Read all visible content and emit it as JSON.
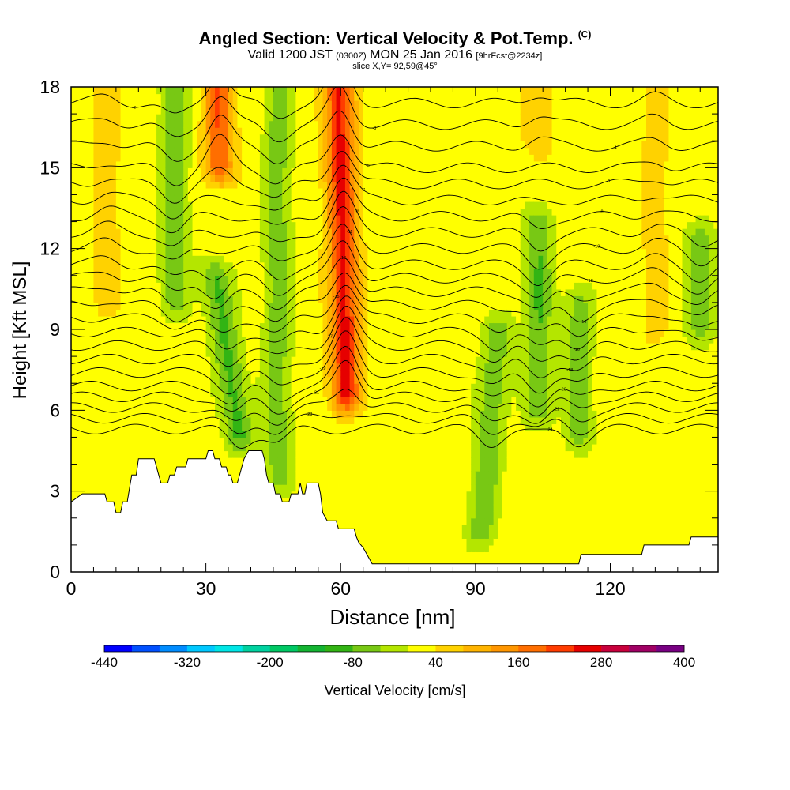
{
  "chart_data": {
    "type": "heatmap",
    "title": "Angled Section: Vertical Velocity & Pot.Temp.",
    "title_badge": "(C)",
    "subtitle_main_a": "Valid 1200 JST",
    "subtitle_small_a": "(0300Z)",
    "subtitle_main_b": "MON 25 Jan 2016",
    "subtitle_small_b": "[9hrFcst@2234z]",
    "slice_label": "slice X,Y= 92,59@45°",
    "xlabel": "Distance [nm]",
    "ylabel": "Height [Kft MSL]",
    "xlim": [
      0,
      144
    ],
    "ylim": [
      0,
      18
    ],
    "x_ticks": [
      "0",
      "30",
      "60",
      "90",
      "120"
    ],
    "y_ticks": [
      "0",
      "3",
      "6",
      "9",
      "12",
      "15",
      "18"
    ],
    "colorbar": {
      "label": "Vertical Velocity [cm/s]",
      "tick_labels": [
        "-440",
        "-320",
        "-200",
        "-80",
        "40",
        "160",
        "280",
        "400"
      ],
      "range": [
        -440,
        400
      ],
      "colors": [
        "#0000ff",
        "#0050ff",
        "#008cff",
        "#00c8ff",
        "#00e6e6",
        "#00d2a0",
        "#00c864",
        "#14b432",
        "#32b414",
        "#78c814",
        "#b4e600",
        "#ffff00",
        "#ffd200",
        "#ffb400",
        "#ff9600",
        "#ff6e00",
        "#ff3c00",
        "#e60000",
        "#c8003c",
        "#a00064",
        "#780082"
      ]
    },
    "background_value_cm_s": 20,
    "updrafts": [
      {
        "x": 61,
        "z0": 6.5,
        "z1": 18,
        "lean": -0.15,
        "peak_cm_s": 250
      },
      {
        "x": 33,
        "z0": 15,
        "z1": 18,
        "lean": 0,
        "peak_cm_s": 200
      },
      {
        "x": 104,
        "z0": 16,
        "z1": 18,
        "lean": 0,
        "peak_cm_s": 80
      },
      {
        "x": 8,
        "z0": 10,
        "z1": 18,
        "lean": 0,
        "peak_cm_s": 60
      },
      {
        "x": 130,
        "z0": 9,
        "z1": 18,
        "lean": 0,
        "peak_cm_s": 60
      }
    ],
    "downdrafts": [
      {
        "x": 34,
        "z0": 5,
        "z1": 11,
        "lean": -0.9,
        "peak_cm_s": -90
      },
      {
        "x": 23,
        "z0": 10,
        "z1": 18,
        "lean": 0,
        "peak_cm_s": -70
      },
      {
        "x": 46,
        "z0": 3.5,
        "z1": 18,
        "lean": 0,
        "peak_cm_s": -60
      },
      {
        "x": 95,
        "z0": 1.5,
        "z1": 9,
        "lean": 0.5,
        "peak_cm_s": -70
      },
      {
        "x": 104,
        "z0": 6,
        "z1": 13,
        "lean": 0,
        "peak_cm_s": -80
      },
      {
        "x": 113,
        "z0": 5,
        "z1": 10,
        "lean": 0,
        "peak_cm_s": -60
      },
      {
        "x": 140,
        "z0": 9,
        "z1": 12.5,
        "lean": 0,
        "peak_cm_s": -60
      }
    ],
    "terrain_kft": [
      [
        0,
        2.6
      ],
      [
        2.5,
        2.9
      ],
      [
        7.5,
        2.9
      ],
      [
        8,
        2.6
      ],
      [
        9.5,
        2.6
      ],
      [
        10,
        2.2
      ],
      [
        11,
        2.2
      ],
      [
        11.5,
        2.6
      ],
      [
        12.5,
        2.6
      ],
      [
        13,
        3.1
      ],
      [
        13.5,
        3.6
      ],
      [
        14.5,
        3.6
      ],
      [
        15,
        4.2
      ],
      [
        18.5,
        4.2
      ],
      [
        19,
        3.9
      ],
      [
        19.5,
        3.6
      ],
      [
        20,
        3.3
      ],
      [
        21.5,
        3.3
      ],
      [
        22,
        3.6
      ],
      [
        23,
        3.6
      ],
      [
        23.5,
        3.9
      ],
      [
        25.5,
        3.9
      ],
      [
        26,
        4.2
      ],
      [
        30,
        4.2
      ],
      [
        30.5,
        4.5
      ],
      [
        31.5,
        4.5
      ],
      [
        32,
        4.2
      ],
      [
        33,
        4.2
      ],
      [
        33.5,
        3.9
      ],
      [
        34.5,
        3.9
      ],
      [
        35,
        3.6
      ],
      [
        35.5,
        3.6
      ],
      [
        36,
        3.3
      ],
      [
        37,
        3.3
      ],
      [
        37.5,
        3.6
      ],
      [
        38,
        3.9
      ],
      [
        38.5,
        4.2
      ],
      [
        39.5,
        4.5
      ],
      [
        42.5,
        4.5
      ],
      [
        43,
        4.2
      ],
      [
        43.5,
        3.6
      ],
      [
        44,
        3.3
      ],
      [
        45,
        3.3
      ],
      [
        45.5,
        2.9
      ],
      [
        46.5,
        2.9
      ],
      [
        47,
        2.6
      ],
      [
        48.5,
        2.6
      ],
      [
        49,
        2.9
      ],
      [
        50.5,
        2.9
      ],
      [
        51,
        3.3
      ],
      [
        51.5,
        2.9
      ],
      [
        52,
        2.9
      ],
      [
        52.5,
        3.3
      ],
      [
        55,
        3.3
      ],
      [
        55.5,
        2.9
      ],
      [
        56,
        2.2
      ],
      [
        57,
        1.9
      ],
      [
        59,
        1.9
      ],
      [
        59.5,
        1.6
      ],
      [
        63,
        1.6
      ],
      [
        63.5,
        1.3
      ],
      [
        64,
        1.1
      ],
      [
        65,
        0.9
      ],
      [
        66,
        0.6
      ],
      [
        67,
        0.3
      ],
      [
        113,
        0.3
      ],
      [
        113.5,
        0.65
      ],
      [
        127,
        0.65
      ],
      [
        127.5,
        1.0
      ],
      [
        137.5,
        1.0
      ],
      [
        138,
        1.3
      ],
      [
        144,
        1.3
      ]
    ],
    "contour_interval_C": 1,
    "isentropes": [
      {
        "label": "-2",
        "z": 17.4
      },
      {
        "label": "-3",
        "z": 16.6
      },
      {
        "label": "-4",
        "z": 15.8
      },
      {
        "label": "-5",
        "z": 15.0
      },
      {
        "label": "-6",
        "z": 14.4
      },
      {
        "label": "-7",
        "z": 13.8
      },
      {
        "label": "-8",
        "z": 13.2
      },
      {
        "label": "-9",
        "z": 12.6
      },
      {
        "label": "-10",
        "z": 12.0
      },
      {
        "label": "-11",
        "z": 11.4
      },
      {
        "label": "-12",
        "z": 10.9
      },
      {
        "label": "-13",
        "z": 10.4
      },
      {
        "label": "-14",
        "z": 9.9
      },
      {
        "label": "-15",
        "z": 9.4
      },
      {
        "label": "-16",
        "z": 8.9
      },
      {
        "label": "-17",
        "z": 8.4
      },
      {
        "label": "-18",
        "z": 7.9
      },
      {
        "label": "-19",
        "z": 7.4
      },
      {
        "label": "-20",
        "z": 6.9
      },
      {
        "label": "-21",
        "z": 6.5
      },
      {
        "label": "-22",
        "z": 6.1
      },
      {
        "label": "-23",
        "z": 5.7
      },
      {
        "label": "-24",
        "z": 5.3
      }
    ]
  }
}
